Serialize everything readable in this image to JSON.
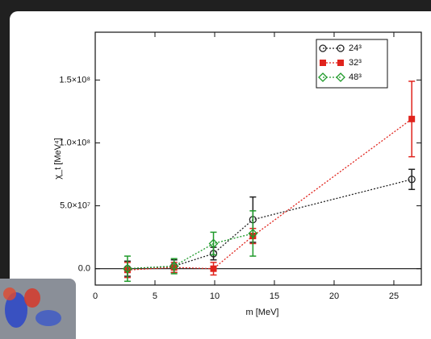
{
  "chart_data": {
    "type": "errorbar",
    "xlabel": "m [MeV]",
    "ylabel": "χ_t [MeV⁴]",
    "xlim": [
      0,
      27.3
    ],
    "ylim": [
      -13000000,
      188000000
    ],
    "xticks": [
      0,
      5,
      10,
      15,
      20,
      25
    ],
    "yticks": [
      {
        "value": 0,
        "label": "0.0"
      },
      {
        "value": 50000000,
        "label": "5.0×10⁷"
      },
      {
        "value": 100000000,
        "label": "1.0×10⁸"
      },
      {
        "value": 150000000,
        "label": "1.5×10⁸"
      }
    ],
    "legend": "upper right",
    "series": [
      {
        "name": "24³",
        "color": "#222222",
        "marker": "circle",
        "x": [
          2.7,
          6.6,
          9.9,
          13.2,
          26.5
        ],
        "values": [
          0,
          2000000,
          12000000,
          39000000,
          71000000
        ],
        "errors": [
          6000000,
          5000000,
          5000000,
          18000000,
          8000000
        ]
      },
      {
        "name": "32³",
        "color": "#e0231c",
        "marker": "square",
        "x": [
          2.7,
          6.6,
          9.9,
          13.2,
          26.5
        ],
        "values": [
          -1000000,
          1000000,
          0,
          26000000,
          119000000
        ],
        "errors": [
          6000000,
          4000000,
          5000000,
          6000000,
          30000000
        ]
      },
      {
        "name": "48³",
        "color": "#1f9a2a",
        "marker": "diamond",
        "x": [
          2.7,
          6.6,
          9.9,
          13.2
        ],
        "values": [
          0,
          2000000,
          20000000,
          28000000
        ],
        "errors": [
          10000000,
          6000000,
          9000000,
          18000000
        ]
      }
    ]
  }
}
